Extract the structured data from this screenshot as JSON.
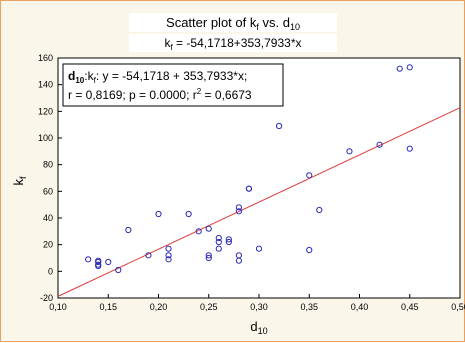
{
  "chart_data": {
    "type": "scatter",
    "title": "Scatter plot of kf vs. d10",
    "title_parts": {
      "prefix": "Scatter plot of k",
      "sub1": "f",
      "mid": " vs. d",
      "sub2": "10"
    },
    "subtitle": "kf = -54,1718+353,7933*x",
    "subtitle_parts": {
      "prefix": "k",
      "sub": "f",
      "rest": " = -54,1718+353,7933*x"
    },
    "xlabel": "d10",
    "xlabel_parts": {
      "main": "d",
      "sub": "10"
    },
    "ylabel": "kf",
    "ylabel_parts": {
      "main": "k",
      "sub": "f"
    },
    "xlim": [
      0.1,
      0.5
    ],
    "ylim": [
      -20,
      160
    ],
    "xticks": [
      "0,10",
      "0,15",
      "0,20",
      "0,25",
      "0,30",
      "0,35",
      "0,40",
      "0,45",
      "0,50"
    ],
    "xtick_values": [
      0.1,
      0.15,
      0.2,
      0.25,
      0.3,
      0.35,
      0.4,
      0.45,
      0.5
    ],
    "yticks": [
      "-20",
      "0",
      "20",
      "40",
      "60",
      "80",
      "100",
      "120",
      "140",
      "160"
    ],
    "ytick_values": [
      -20,
      0,
      20,
      40,
      60,
      80,
      100,
      120,
      140,
      160
    ],
    "grid": false,
    "annotation": {
      "line1_parts": {
        "d": "d",
        "dsub": "10",
        "k": ":k",
        "ksub": "f",
        "eq": ":   y = -54,1718 + 353,7933*x;"
      },
      "line2_parts": {
        "main": "r = 0,8169; p = 0.0000; r",
        "sup": "2",
        "rest": " = 0,6673"
      }
    },
    "regression": {
      "intercept": -54.1718,
      "slope": 353.7933
    },
    "marker_color": "#2a2ab8",
    "line_color": "#e03c3c",
    "series": [
      {
        "x": [
          0.13,
          0.14,
          0.14,
          0.14,
          0.14,
          0.15,
          0.16,
          0.17,
          0.19,
          0.2,
          0.21,
          0.21,
          0.21,
          0.23,
          0.24,
          0.25,
          0.25,
          0.25,
          0.26,
          0.26,
          0.26,
          0.27,
          0.27,
          0.28,
          0.28,
          0.28,
          0.28,
          0.29,
          0.29,
          0.3,
          0.32,
          0.35,
          0.35,
          0.36,
          0.39,
          0.42,
          0.44,
          0.45,
          0.45
        ],
        "y": [
          9,
          8,
          7,
          5,
          4,
          7,
          1,
          31,
          12,
          43,
          17,
          12,
          9,
          43,
          30,
          32,
          12,
          10,
          25,
          22,
          17,
          24,
          22,
          48,
          45,
          12,
          8,
          62,
          62,
          17,
          109,
          72,
          16,
          46,
          90,
          95,
          152,
          153,
          92
        ]
      }
    ]
  }
}
